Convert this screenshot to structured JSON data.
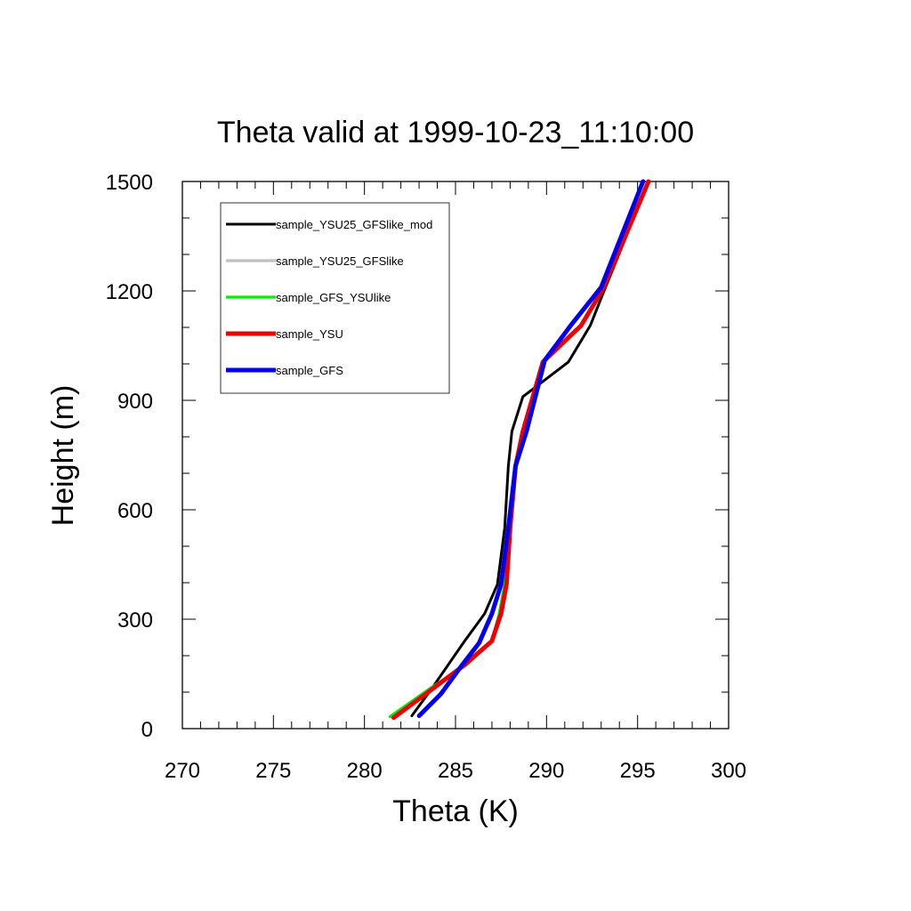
{
  "chart_data": {
    "type": "line",
    "title": "Theta valid at 1999-10-23_11:10:00",
    "xlabel": "Theta (K)",
    "ylabel": "Height (m)",
    "xlim": [
      270,
      300
    ],
    "ylim": [
      0,
      1500
    ],
    "xticks": [
      "270",
      "275",
      "280",
      "285",
      "290",
      "295",
      "300"
    ],
    "yticks": [
      "0",
      "300",
      "600",
      "900",
      "1200",
      "1500"
    ],
    "grid": false,
    "legend_position": "top-left",
    "series": [
      {
        "name": "sample_YSU25_GFSlike_mod",
        "color": "#000000",
        "style": "thin",
        "x": [
          282.6,
          283.7,
          285.5,
          286.6,
          287.3,
          287.7,
          287.9,
          288.1,
          288.7,
          291.2,
          292.4,
          293.2,
          295.6
        ],
        "y": [
          35,
          110,
          240,
          315,
          395,
          550,
          720,
          815,
          910,
          1005,
          1105,
          1205,
          1500
        ]
      },
      {
        "name": "sample_YSU25_GFSlike",
        "color": "#c0c0c0",
        "style": "medium",
        "x": [
          281.5,
          283.3,
          285.5,
          287.0,
          287.4,
          287.7,
          287.9,
          288.3,
          288.8,
          289.8,
          291.9,
          293.1,
          295.6
        ],
        "y": [
          33,
          100,
          170,
          240,
          315,
          395,
          550,
          720,
          815,
          1005,
          1105,
          1205,
          1500
        ]
      },
      {
        "name": "sample_GFS_YSUlike",
        "color": "#00ee00",
        "style": "medium",
        "x": [
          281.4,
          283.6,
          285.6,
          287.0,
          287.4,
          287.7,
          287.9,
          288.3,
          288.8,
          289.8,
          291.9,
          293.1,
          295.6
        ],
        "y": [
          33,
          110,
          175,
          240,
          315,
          395,
          550,
          720,
          815,
          1005,
          1105,
          1205,
          1500
        ]
      },
      {
        "name": "sample_YSU",
        "color": "#ee0000",
        "style": "thick",
        "x": [
          281.6,
          283.5,
          285.5,
          287.0,
          287.5,
          287.8,
          288.0,
          288.3,
          288.7,
          289.8,
          291.9,
          293.1,
          295.6
        ],
        "y": [
          30,
          100,
          175,
          240,
          315,
          395,
          550,
          720,
          815,
          1005,
          1105,
          1205,
          1500
        ]
      },
      {
        "name": "sample_GFS",
        "color": "#0000ee",
        "style": "thick",
        "x": [
          283.0,
          284.2,
          285.3,
          286.3,
          287.0,
          287.5,
          287.9,
          288.3,
          288.9,
          289.9,
          291.4,
          293.0,
          295.3
        ],
        "y": [
          35,
          95,
          170,
          235,
          315,
          395,
          550,
          720,
          815,
          1010,
          1110,
          1210,
          1500
        ]
      }
    ]
  }
}
